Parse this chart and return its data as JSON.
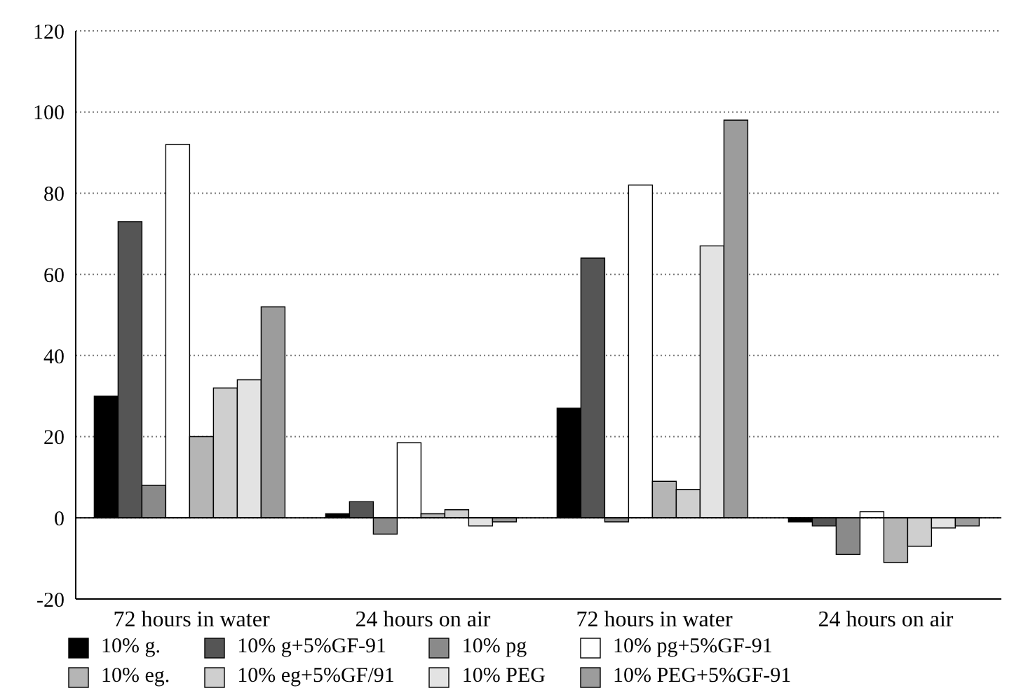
{
  "chart_data": {
    "type": "bar",
    "categories": [
      "72 hours in water",
      "24 hours on air",
      "72 hours in water",
      "24 hours on air"
    ],
    "series": [
      {
        "name": "10% g.",
        "color": "#000000",
        "values": [
          30,
          1,
          27,
          -1
        ]
      },
      {
        "name": "10% g+5%GF-91",
        "color": "#555555",
        "values": [
          73,
          4,
          64,
          -2
        ]
      },
      {
        "name": "10% pg",
        "color": "#8a8a8a",
        "values": [
          8,
          -4,
          -1,
          -9
        ]
      },
      {
        "name": "10% pg+5%GF-91",
        "color": "#ffffff",
        "values": [
          92,
          18.5,
          82,
          1.5
        ]
      },
      {
        "name": "10% eg.",
        "color": "#b5b5b5",
        "values": [
          20,
          1,
          9,
          -11
        ]
      },
      {
        "name": "10% eg+5%GF/91",
        "color": "#cfcfcf",
        "values": [
          32,
          2,
          7,
          -7
        ]
      },
      {
        "name": "10% PEG",
        "color": "#e3e3e3",
        "values": [
          34,
          -2,
          67,
          -2.5
        ]
      },
      {
        "name": "10% PEG+5%GF-91",
        "color": "#9c9c9c",
        "values": [
          52,
          -1,
          98,
          -2
        ]
      }
    ],
    "ylim": [
      -20,
      120
    ],
    "yticks": [
      -20,
      0,
      20,
      40,
      60,
      80,
      100,
      120
    ],
    "grid": "y",
    "legend": "bottom"
  }
}
